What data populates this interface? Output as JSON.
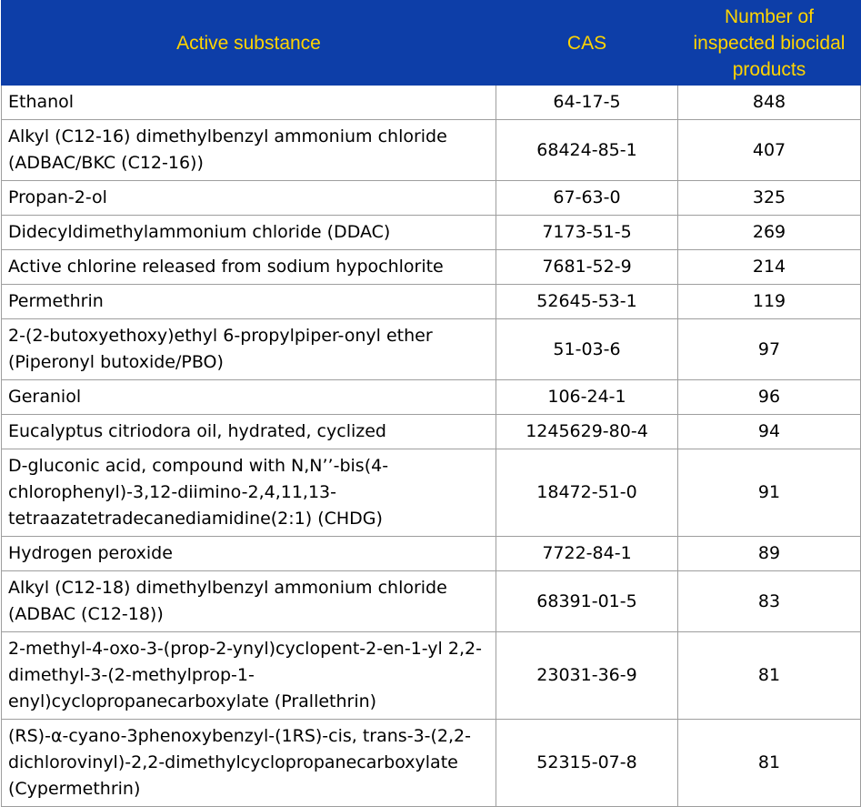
{
  "table": {
    "headers": {
      "substance": "Active substance",
      "cas": "CAS",
      "count_lines": [
        "Number of",
        "inspected biocidal",
        "products"
      ]
    },
    "rows": [
      {
        "substance": "Ethanol",
        "cas": "64-17-5",
        "count": "848"
      },
      {
        "substance": "Alkyl (C12-16) dimethylbenzyl ammonium chloride (ADBAC/BKC (C12-16))",
        "cas": "68424-85-1",
        "count": "407"
      },
      {
        "substance": "Propan-2-ol",
        "cas": "67-63-0",
        "count": "325"
      },
      {
        "substance": "Didecyldimethylammonium chloride (DDAC)",
        "cas": "7173-51-5",
        "count": "269"
      },
      {
        "substance": "Active chlorine released from sodium hypochlorite",
        "cas": "7681-52-9",
        "count": "214"
      },
      {
        "substance": "Permethrin",
        "cas": "52645-53-1",
        "count": "119"
      },
      {
        "substance": "2-(2-butoxyethoxy)ethyl 6-propylpiper-onyl ether (Piperonyl butoxide/PBO)",
        "cas": "51-03-6",
        "count": "97"
      },
      {
        "substance": "Geraniol",
        "cas": "106-24-1",
        "count": "96"
      },
      {
        "substance": "Eucalyptus citriodora oil, hydrated, cyclized",
        "cas": "1245629-80-4",
        "count": "94"
      },
      {
        "substance": "D-gluconic acid, compound with N,N’’-bis(4-chlorophenyl)-3,12-diimino-2,4,11,13-tetraazatetradecanediamidine(2:1) (CHDG)",
        "cas": "18472-51-0",
        "count": "91"
      },
      {
        "substance": "Hydrogen peroxide",
        "cas": "7722-84-1",
        "count": "89"
      },
      {
        "substance": "Alkyl (C12-18) dimethylbenzyl ammonium chloride (ADBAC (C12-18))",
        "cas": "68391-01-5",
        "count": "83"
      },
      {
        "substance": "2-methyl-4-oxo-3-(prop-2-ynyl)cyclopent-2-en-1-yl 2,2-dimethyl-3-(2-methylprop-1-enyl)cyclopropanecarboxylate (Prallethrin)",
        "cas": "23031-36-9",
        "count": "81"
      },
      {
        "substance": "(RS)-α-cyano-3phenoxybenzyl-(1RS)-cis, trans-3-(2,2-dichlorovinyl)-2,2-dimethylcyclopropanecarboxylate (Cypermethrin)",
        "cas": "52315-07-8",
        "count": "81"
      }
    ]
  }
}
